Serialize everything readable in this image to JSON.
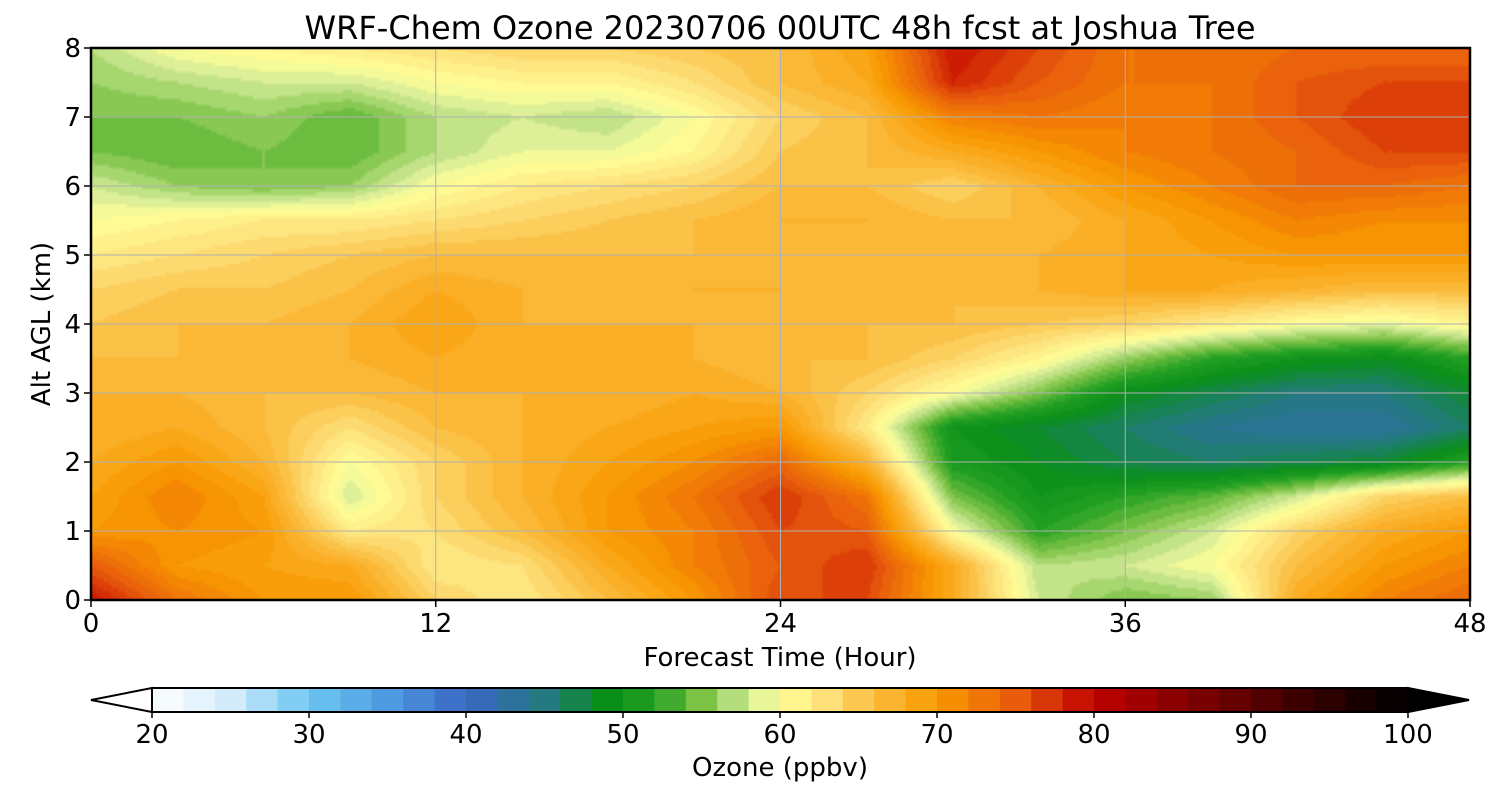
{
  "chart_data": {
    "type": "heatmap",
    "title": "WRF-Chem Ozone  20230706 00UTC 48h fcst at Joshua Tree",
    "xlabel": "Forecast Time (Hour)",
    "ylabel": "Alt AGL (km)",
    "xlim": [
      0,
      48
    ],
    "ylim": [
      0,
      8
    ],
    "xticks": [
      "0",
      "12",
      "24",
      "36",
      "48"
    ],
    "yticks": [
      "0",
      "1",
      "2",
      "3",
      "4",
      "5",
      "6",
      "7",
      "8"
    ],
    "grid": true,
    "x_hours": [
      0,
      3,
      6,
      9,
      12,
      15,
      18,
      21,
      24,
      27,
      30,
      33,
      36,
      39,
      42,
      45,
      48
    ],
    "y_km": [
      0,
      0.5,
      1,
      1.5,
      2,
      2.5,
      3,
      3.5,
      4,
      4.5,
      5,
      5.5,
      6,
      6.5,
      7,
      7.5,
      8
    ],
    "z_ppbv": [
      [
        79,
        73,
        70,
        70,
        64,
        62,
        66,
        70,
        76,
        76,
        68,
        58,
        55,
        56,
        68,
        72,
        74
      ],
      [
        75,
        70,
        69,
        68,
        62,
        63,
        68,
        72,
        75,
        77,
        68,
        57,
        58,
        60,
        66,
        70,
        72
      ],
      [
        70,
        71,
        70,
        62,
        63,
        66,
        70,
        72,
        76,
        75,
        60,
        52,
        55,
        58,
        64,
        68,
        70
      ],
      [
        69,
        72,
        69,
        58,
        64,
        67,
        70,
        73,
        77,
        73,
        55,
        50,
        52,
        54,
        58,
        64,
        66
      ],
      [
        68,
        70,
        67,
        60,
        64,
        67,
        69,
        71,
        74,
        67,
        51,
        49,
        47,
        46,
        47,
        48,
        52
      ],
      [
        67,
        68,
        66,
        63,
        66,
        67,
        68,
        69,
        70,
        62,
        50,
        48,
        46,
        44,
        43,
        43,
        46
      ],
      [
        67,
        67,
        66,
        66,
        67,
        67,
        67,
        68,
        67,
        64,
        60,
        55,
        49,
        47,
        45,
        45,
        48
      ],
      [
        66,
        66,
        66,
        67,
        68,
        67,
        67,
        67,
        66,
        66,
        64,
        61,
        56,
        52,
        50,
        49,
        52
      ],
      [
        65,
        66,
        66,
        67,
        69,
        67,
        67,
        67,
        66,
        66,
        66,
        65,
        64,
        62,
        60,
        59,
        61
      ],
      [
        64,
        65,
        65,
        66,
        68,
        67,
        66,
        67,
        67,
        66,
        66,
        67,
        68,
        68,
        67,
        66,
        66
      ],
      [
        62,
        63,
        64,
        65,
        66,
        66,
        66,
        66,
        67,
        66,
        66,
        67,
        68,
        69,
        70,
        70,
        70
      ],
      [
        60,
        61,
        62,
        62,
        63,
        64,
        65,
        66,
        67,
        67,
        66,
        66,
        68,
        70,
        72,
        71,
        71
      ],
      [
        58,
        56,
        55,
        56,
        60,
        62,
        63,
        64,
        66,
        66,
        64,
        67,
        70,
        72,
        74,
        74,
        73
      ],
      [
        55,
        54,
        55,
        54,
        57,
        59,
        59,
        61,
        65,
        66,
        68,
        70,
        72,
        73,
        74,
        76,
        76
      ],
      [
        55,
        55,
        56,
        54,
        57,
        58,
        57,
        60,
        64,
        66,
        72,
        73,
        72,
        73,
        75,
        77,
        77
      ],
      [
        56,
        57,
        58,
        58,
        60,
        61,
        61,
        63,
        66,
        68,
        78,
        75,
        73,
        73,
        75,
        76,
        76
      ],
      [
        57,
        60,
        61,
        62,
        63,
        64,
        64,
        65,
        66,
        69,
        79,
        76,
        73,
        73,
        74,
        74,
        74
      ]
    ],
    "colorbar": {
      "label": "Ozone  (ppbv)",
      "min": 20,
      "max": 100,
      "ticks": [
        "20",
        "30",
        "40",
        "50",
        "60",
        "70",
        "80",
        "90",
        "100"
      ],
      "extend": "both",
      "colors": [
        {
          "v": 20,
          "c": "#ffffff"
        },
        {
          "v": 25,
          "c": "#d4ecfa"
        },
        {
          "v": 30,
          "c": "#6cc5f2"
        },
        {
          "v": 35,
          "c": "#4f9be0"
        },
        {
          "v": 40,
          "c": "#3a66c4"
        },
        {
          "v": 45,
          "c": "#247a80"
        },
        {
          "v": 49,
          "c": "#0a8e1a"
        },
        {
          "v": 52,
          "c": "#22a022"
        },
        {
          "v": 55,
          "c": "#7bc245"
        },
        {
          "v": 58,
          "c": "#d1ea96"
        },
        {
          "v": 60,
          "c": "#ffff99"
        },
        {
          "v": 63,
          "c": "#fde07a"
        },
        {
          "v": 66,
          "c": "#fbbc3e"
        },
        {
          "v": 70,
          "c": "#f99a00"
        },
        {
          "v": 75,
          "c": "#e85c0c"
        },
        {
          "v": 80,
          "c": "#c00000"
        },
        {
          "v": 85,
          "c": "#8a0000"
        },
        {
          "v": 90,
          "c": "#5a0000"
        },
        {
          "v": 95,
          "c": "#2a0000"
        },
        {
          "v": 100,
          "c": "#000000"
        }
      ]
    }
  }
}
